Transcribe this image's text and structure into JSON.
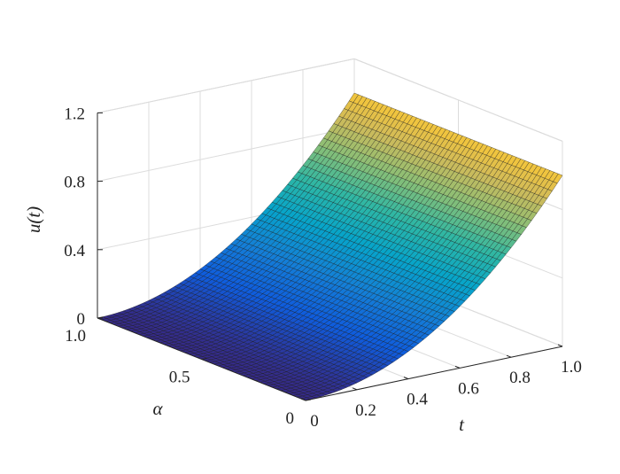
{
  "chart_data": {
    "type": "surface",
    "function": "u(t) = t^2 (surface constant in alpha)",
    "x": {
      "name": "t",
      "range": [
        0,
        1
      ],
      "ticks": [
        0,
        0.2,
        0.4,
        0.6,
        0.8,
        1.0
      ],
      "tick_labels": [
        "0",
        "0.2",
        "0.4",
        "0.6",
        "0.8",
        "1.0"
      ]
    },
    "y": {
      "name": "α",
      "range": [
        0,
        1
      ],
      "ticks": [
        0,
        0.5,
        1.0
      ],
      "tick_labels": [
        "0",
        "0.5",
        "1.0"
      ]
    },
    "z": {
      "name": "u(t)",
      "range": [
        0,
        1.2
      ],
      "ticks": [
        0,
        0.4,
        0.8,
        1.2
      ],
      "tick_labels": [
        "0",
        "0.4",
        "0.8",
        "1.2"
      ]
    },
    "grid_t": [
      0,
      0.1,
      0.2,
      0.3,
      0.4,
      0.5,
      0.6,
      0.7,
      0.8,
      0.9,
      1.0
    ],
    "grid_alpha": [
      0,
      0.25,
      0.5,
      0.75,
      1.0
    ],
    "u_values_at_t": [
      0,
      0.01,
      0.04,
      0.09,
      0.16,
      0.25,
      0.36,
      0.49,
      0.64,
      0.81,
      1.0
    ],
    "colormap": "parula",
    "colormap_stops": [
      "#352a87",
      "#0f5cdd",
      "#1481d6",
      "#06a4ca",
      "#2eb7a4",
      "#87bf77",
      "#d1bb59",
      "#fec832",
      "#f9fb0e"
    ],
    "edge_color": "#1a1a1a",
    "grid": true,
    "xlabel": "t",
    "ylabel": "α",
    "zlabel": "u(t)"
  }
}
